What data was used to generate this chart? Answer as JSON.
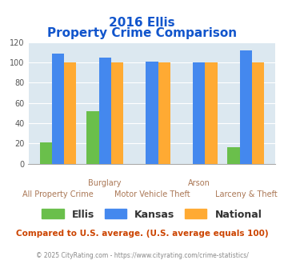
{
  "title_line1": "2016 Ellis",
  "title_line2": "Property Crime Comparison",
  "categories": [
    "All Property Crime",
    "Burglary",
    "Motor Vehicle Theft",
    "Arson",
    "Larceny & Theft"
  ],
  "x_labels_top": [
    "",
    "Burglary",
    "",
    "Arson",
    ""
  ],
  "x_labels_bottom": [
    "All Property Crime",
    "",
    "Motor Vehicle Theft",
    "",
    "Larceny & Theft"
  ],
  "ellis": [
    21,
    52,
    0,
    0,
    16
  ],
  "kansas": [
    109,
    105,
    101,
    100,
    112
  ],
  "national": [
    100,
    100,
    100,
    100,
    100
  ],
  "ellis_color": "#6abf4b",
  "kansas_color": "#4488ee",
  "national_color": "#ffaa33",
  "ylim": [
    0,
    120
  ],
  "yticks": [
    0,
    20,
    40,
    60,
    80,
    100,
    120
  ],
  "background_color": "#dce8f0",
  "title_color": "#1155cc",
  "label_color": "#aa7755",
  "legend_label_ellis": "Ellis",
  "legend_label_kansas": "Kansas",
  "legend_label_national": "National",
  "footer_text": "Compared to U.S. average. (U.S. average equals 100)",
  "copyright_text": "© 2025 CityRating.com - https://www.cityrating.com/crime-statistics/",
  "footer_color": "#cc4400",
  "copyright_color": "#888888"
}
